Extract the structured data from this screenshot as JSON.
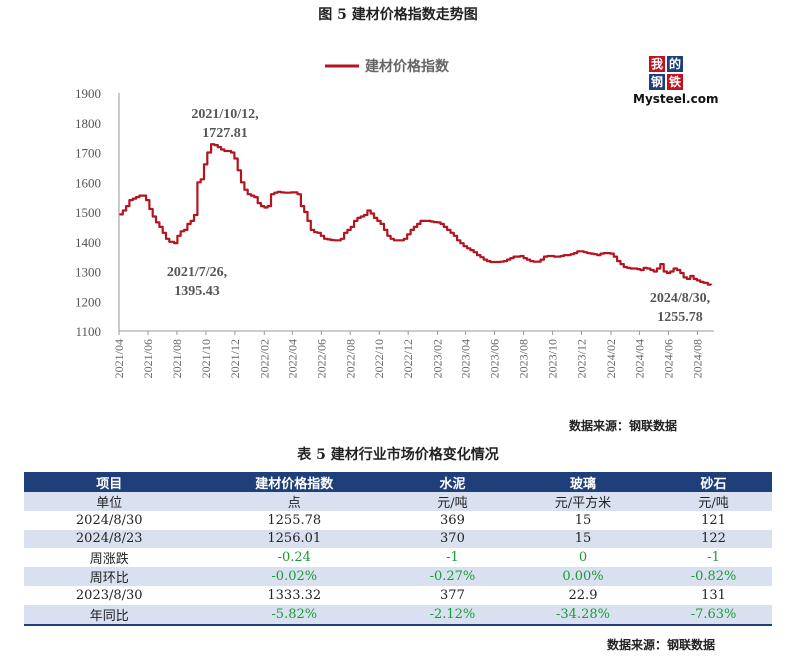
{
  "figure_title": "图 5  建材价格指数走势图",
  "chart_source": "数据来源：钢联数据",
  "logo": {
    "chars": [
      "我",
      "的",
      "钢",
      "铁"
    ],
    "text": "Mysteel.com"
  },
  "chart_data": {
    "type": "line",
    "title": "图 5  建材价格指数走势图",
    "xlabel": "",
    "ylabel": "",
    "ylim": [
      1100,
      1900
    ],
    "yticks": [
      1100,
      1200,
      1300,
      1400,
      1500,
      1600,
      1700,
      1800,
      1900
    ],
    "xlim": [
      "2021-04-01",
      "2024-09-05"
    ],
    "xticks": [
      "2021/04",
      "2021/06",
      "2021/08",
      "2021/10",
      "2021/12",
      "2022/02",
      "2022/04",
      "2022/06",
      "2022/08",
      "2022/10",
      "2022/12",
      "2023/02",
      "2023/04",
      "2023/06",
      "2023/08",
      "2023/10",
      "2023/12",
      "2024/02",
      "2024/04",
      "2024/06",
      "2024/08"
    ],
    "grid": false,
    "legend": "top-center",
    "line_color": "#b3141e",
    "series": [
      {
        "name": "建材价格指数",
        "points": [
          [
            "2021-04-02",
            1492
          ],
          [
            "2021-04-09",
            1505
          ],
          [
            "2021-04-16",
            1520
          ],
          [
            "2021-04-23",
            1540
          ],
          [
            "2021-04-30",
            1545
          ],
          [
            "2021-05-07",
            1550
          ],
          [
            "2021-05-14",
            1555
          ],
          [
            "2021-05-21",
            1555
          ],
          [
            "2021-05-28",
            1540
          ],
          [
            "2021-06-04",
            1510
          ],
          [
            "2021-06-11",
            1485
          ],
          [
            "2021-06-18",
            1465
          ],
          [
            "2021-06-25",
            1450
          ],
          [
            "2021-07-02",
            1430
          ],
          [
            "2021-07-09",
            1410
          ],
          [
            "2021-07-16",
            1400
          ],
          [
            "2021-07-26",
            1395.43
          ],
          [
            "2021-08-02",
            1420
          ],
          [
            "2021-08-09",
            1435
          ],
          [
            "2021-08-16",
            1440
          ],
          [
            "2021-08-23",
            1460
          ],
          [
            "2021-08-30",
            1470
          ],
          [
            "2021-09-06",
            1490
          ],
          [
            "2021-09-13",
            1600
          ],
          [
            "2021-09-20",
            1610
          ],
          [
            "2021-09-27",
            1660
          ],
          [
            "2021-10-04",
            1700
          ],
          [
            "2021-10-12",
            1727.81
          ],
          [
            "2021-10-19",
            1725
          ],
          [
            "2021-10-26",
            1718
          ],
          [
            "2021-11-02",
            1710
          ],
          [
            "2021-11-09",
            1705
          ],
          [
            "2021-11-16",
            1705
          ],
          [
            "2021-11-23",
            1700
          ],
          [
            "2021-11-30",
            1680
          ],
          [
            "2021-12-07",
            1640
          ],
          [
            "2021-12-14",
            1600
          ],
          [
            "2021-12-21",
            1575
          ],
          [
            "2021-12-28",
            1560
          ],
          [
            "2022-01-04",
            1555
          ],
          [
            "2022-01-11",
            1550
          ],
          [
            "2022-01-18",
            1530
          ],
          [
            "2022-01-25",
            1520
          ],
          [
            "2022-02-01",
            1515
          ],
          [
            "2022-02-08",
            1520
          ],
          [
            "2022-02-15",
            1560
          ],
          [
            "2022-02-22",
            1565
          ],
          [
            "2022-03-01",
            1568
          ],
          [
            "2022-03-08",
            1566
          ],
          [
            "2022-03-15",
            1565
          ],
          [
            "2022-03-22",
            1565
          ],
          [
            "2022-03-29",
            1566
          ],
          [
            "2022-04-05",
            1566
          ],
          [
            "2022-04-12",
            1560
          ],
          [
            "2022-04-19",
            1520
          ],
          [
            "2022-04-26",
            1500
          ],
          [
            "2022-05-03",
            1470
          ],
          [
            "2022-05-10",
            1440
          ],
          [
            "2022-05-17",
            1432
          ],
          [
            "2022-05-24",
            1430
          ],
          [
            "2022-05-31",
            1420
          ],
          [
            "2022-06-07",
            1410
          ],
          [
            "2022-06-14",
            1408
          ],
          [
            "2022-06-21",
            1406
          ],
          [
            "2022-06-28",
            1405
          ],
          [
            "2022-07-05",
            1405
          ],
          [
            "2022-07-12",
            1410
          ],
          [
            "2022-07-19",
            1430
          ],
          [
            "2022-07-26",
            1440
          ],
          [
            "2022-08-02",
            1450
          ],
          [
            "2022-08-09",
            1470
          ],
          [
            "2022-08-16",
            1480
          ],
          [
            "2022-08-23",
            1485
          ],
          [
            "2022-08-30",
            1490
          ],
          [
            "2022-09-06",
            1505
          ],
          [
            "2022-09-13",
            1495
          ],
          [
            "2022-09-20",
            1480
          ],
          [
            "2022-09-27",
            1470
          ],
          [
            "2022-10-04",
            1460
          ],
          [
            "2022-10-11",
            1440
          ],
          [
            "2022-10-18",
            1420
          ],
          [
            "2022-10-25",
            1410
          ],
          [
            "2022-11-01",
            1405
          ],
          [
            "2022-11-08",
            1405
          ],
          [
            "2022-11-15",
            1405
          ],
          [
            "2022-11-22",
            1410
          ],
          [
            "2022-11-29",
            1425
          ],
          [
            "2022-12-06",
            1440
          ],
          [
            "2022-12-13",
            1450
          ],
          [
            "2022-12-20",
            1460
          ],
          [
            "2022-12-27",
            1470
          ],
          [
            "2023-01-03",
            1470
          ],
          [
            "2023-01-10",
            1470
          ],
          [
            "2023-01-17",
            1468
          ],
          [
            "2023-01-24",
            1466
          ],
          [
            "2023-01-31",
            1465
          ],
          [
            "2023-02-07",
            1460
          ],
          [
            "2023-02-14",
            1450
          ],
          [
            "2023-02-21",
            1440
          ],
          [
            "2023-02-28",
            1430
          ],
          [
            "2023-03-07",
            1420
          ],
          [
            "2023-03-14",
            1405
          ],
          [
            "2023-03-21",
            1395
          ],
          [
            "2023-03-28",
            1385
          ],
          [
            "2023-04-04",
            1378
          ],
          [
            "2023-04-11",
            1372
          ],
          [
            "2023-04-18",
            1365
          ],
          [
            "2023-04-25",
            1355
          ],
          [
            "2023-05-02",
            1348
          ],
          [
            "2023-05-09",
            1340
          ],
          [
            "2023-05-16",
            1335
          ],
          [
            "2023-05-23",
            1332
          ],
          [
            "2023-05-30",
            1332
          ],
          [
            "2023-06-06",
            1332
          ],
          [
            "2023-06-13",
            1333
          ],
          [
            "2023-06-20",
            1335
          ],
          [
            "2023-06-27",
            1340
          ],
          [
            "2023-07-04",
            1345
          ],
          [
            "2023-07-11",
            1350
          ],
          [
            "2023-07-18",
            1350
          ],
          [
            "2023-07-25",
            1352
          ],
          [
            "2023-08-01",
            1345
          ],
          [
            "2023-08-08",
            1340
          ],
          [
            "2023-08-15",
            1335
          ],
          [
            "2023-08-22",
            1333
          ],
          [
            "2023-08-30",
            1333.32
          ],
          [
            "2023-09-06",
            1340
          ],
          [
            "2023-09-13",
            1350
          ],
          [
            "2023-09-20",
            1352
          ],
          [
            "2023-09-27",
            1352
          ],
          [
            "2023-10-04",
            1350
          ],
          [
            "2023-10-11",
            1350
          ],
          [
            "2023-10-18",
            1352
          ],
          [
            "2023-10-25",
            1355
          ],
          [
            "2023-11-01",
            1355
          ],
          [
            "2023-11-08",
            1358
          ],
          [
            "2023-11-15",
            1362
          ],
          [
            "2023-11-22",
            1368
          ],
          [
            "2023-11-29",
            1368
          ],
          [
            "2023-12-06",
            1365
          ],
          [
            "2023-12-13",
            1362
          ],
          [
            "2023-12-20",
            1360
          ],
          [
            "2023-12-27",
            1358
          ],
          [
            "2024-01-03",
            1355
          ],
          [
            "2024-01-10",
            1360
          ],
          [
            "2024-01-17",
            1362
          ],
          [
            "2024-01-24",
            1362
          ],
          [
            "2024-01-31",
            1360
          ],
          [
            "2024-02-07",
            1350
          ],
          [
            "2024-02-14",
            1335
          ],
          [
            "2024-02-21",
            1325
          ],
          [
            "2024-02-28",
            1315
          ],
          [
            "2024-03-06",
            1312
          ],
          [
            "2024-03-13",
            1310
          ],
          [
            "2024-03-20",
            1310
          ],
          [
            "2024-03-27",
            1308
          ],
          [
            "2024-04-03",
            1305
          ],
          [
            "2024-04-10",
            1312
          ],
          [
            "2024-04-17",
            1310
          ],
          [
            "2024-04-24",
            1305
          ],
          [
            "2024-05-01",
            1300
          ],
          [
            "2024-05-08",
            1310
          ],
          [
            "2024-05-15",
            1325
          ],
          [
            "2024-05-22",
            1300
          ],
          [
            "2024-05-29",
            1295
          ],
          [
            "2024-06-05",
            1300
          ],
          [
            "2024-06-12",
            1310
          ],
          [
            "2024-06-19",
            1305
          ],
          [
            "2024-06-26",
            1295
          ],
          [
            "2024-07-03",
            1280
          ],
          [
            "2024-07-10",
            1275
          ],
          [
            "2024-07-17",
            1285
          ],
          [
            "2024-07-24",
            1275
          ],
          [
            "2024-07-31",
            1270
          ],
          [
            "2024-08-07",
            1265
          ],
          [
            "2024-08-14",
            1262
          ],
          [
            "2024-08-23",
            1256.01
          ],
          [
            "2024-08-30",
            1255.78
          ]
        ]
      }
    ],
    "annotations": [
      {
        "date": "2021-10-12",
        "value": 1727.81,
        "text": "2021/10/12,",
        "text2": "1727.81"
      },
      {
        "date": "2021-07-26",
        "value": 1395.43,
        "text": "2021/7/26,",
        "text2": "1395.43"
      },
      {
        "date": "2024-08-30",
        "value": 1255.78,
        "text": "2024/8/30,",
        "text2": "1255.78"
      }
    ]
  },
  "table_title": "表 5  建材行业市场价格变化情况",
  "table": {
    "headers": [
      "项目",
      "建材价格指数",
      "水泥",
      "玻璃",
      "砂石"
    ],
    "rows": [
      {
        "label": "单位",
        "cells": [
          "点",
          "元/吨",
          "元/平方米",
          "元/吨"
        ],
        "green": false
      },
      {
        "label": "2024/8/30",
        "cells": [
          "1255.78",
          "369",
          "15",
          "121"
        ],
        "green": false
      },
      {
        "label": "2024/8/23",
        "cells": [
          "1256.01",
          "370",
          "15",
          "122"
        ],
        "green": false
      },
      {
        "label": "周涨跌",
        "cells": [
          "-0.24",
          "-1",
          "0",
          "-1"
        ],
        "green": true
      },
      {
        "label": "周环比",
        "cells": [
          "-0.02%",
          "-0.27%",
          "0.00%",
          "-0.82%"
        ],
        "green": true
      },
      {
        "label": "2023/8/30",
        "cells": [
          "1333.32",
          "377",
          "22.9",
          "131"
        ],
        "green": false
      },
      {
        "label": "年同比",
        "cells": [
          "-5.82%",
          "-2.12%",
          "-34.28%",
          "-7.63%"
        ],
        "green": true
      }
    ]
  },
  "table_source": "数据来源：钢联数据"
}
